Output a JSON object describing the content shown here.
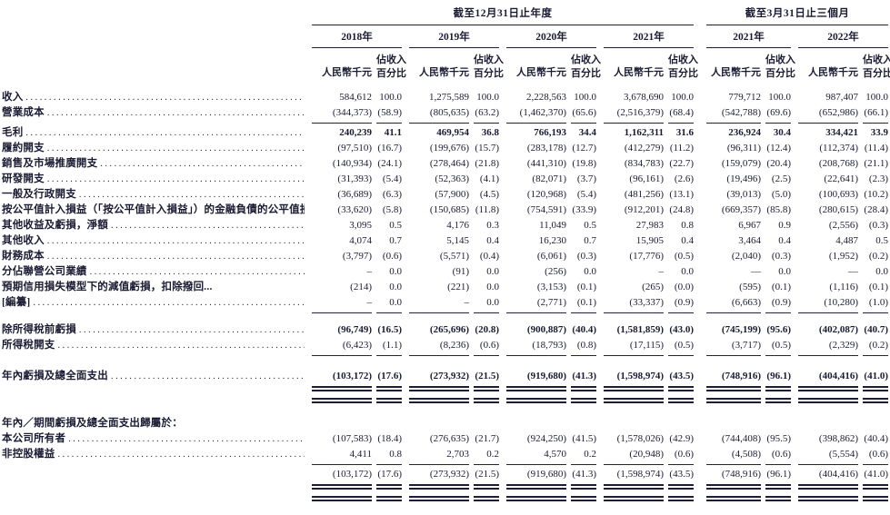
{
  "header": {
    "group1": "截至12月31日止年度",
    "group2": "截至3月31日止三個月",
    "years": [
      "2018年",
      "2019年",
      "2020年",
      "2021年",
      "2021年",
      "2022年"
    ],
    "amount_unit": "人民幣千元",
    "pct_line1": "佔收入",
    "pct_line2": "百分比"
  },
  "rows": [
    {
      "label": "收入",
      "values": [
        "584,612",
        "100.0",
        "1,275,589",
        "100.0",
        "2,228,563",
        "100.0",
        "3,678,690",
        "100.0",
        "779,712",
        "100.0",
        "987,407",
        "100.0"
      ]
    },
    {
      "label": "營業成本",
      "values": [
        "(344,373)",
        "(58.9)",
        "(805,635)",
        "(63.2)",
        "(1,462,370)",
        "(65.6)",
        "(2,516,379)",
        "(68.4)",
        "(542,788)",
        "(69.6)",
        "(652,986)",
        "(66.1)"
      ]
    },
    {
      "label": "毛利",
      "values": [
        "240,239",
        "41.1",
        "469,954",
        "36.8",
        "766,193",
        "34.4",
        "1,162,311",
        "31.6",
        "236,924",
        "30.4",
        "334,421",
        "33.9"
      ]
    },
    {
      "label": "履約開支",
      "values": [
        "(97,510)",
        "(16.7)",
        "(199,676)",
        "(15.7)",
        "(283,178)",
        "(12.7)",
        "(412,279)",
        "(11.2)",
        "(96,311)",
        "(12.4)",
        "(112,374)",
        "(11.4)"
      ]
    },
    {
      "label": "銷售及市場推廣開支",
      "values": [
        "(140,934)",
        "(24.1)",
        "(278,464)",
        "(21.8)",
        "(441,310)",
        "(19.8)",
        "(834,783)",
        "(22.7)",
        "(159,079)",
        "(20.4)",
        "(208,768)",
        "(21.1)"
      ]
    },
    {
      "label": "研發開支",
      "values": [
        "(31,393)",
        "(5.4)",
        "(52,363)",
        "(4.1)",
        "(82,071)",
        "(3.7)",
        "(96,161)",
        "(2.6)",
        "(19,496)",
        "(2.5)",
        "(22,641)",
        "(2.3)"
      ]
    },
    {
      "label": "一般及行政開支",
      "values": [
        "(36,689)",
        "(6.3)",
        "(57,900)",
        "(4.5)",
        "(120,968)",
        "(5.4)",
        "(481,256)",
        "(13.1)",
        "(39,013)",
        "(5.0)",
        "(100,693)",
        "(10.2)"
      ]
    },
    {
      "label": "按公平值計入損益（「按公平值計入損益」）的金融負債的公平值損失",
      "values": [
        "(33,620)",
        "(5.8)",
        "(150,685)",
        "(11.8)",
        "(754,591)",
        "(33.9)",
        "(912,201)",
        "(24.8)",
        "(669,357)",
        "(85.8)",
        "(280,615)",
        "(28.4)"
      ]
    },
    {
      "label": "其他收益及虧損，淨額",
      "values": [
        "3,095",
        "0.5",
        "4,176",
        "0.3",
        "11,049",
        "0.5",
        "27,983",
        "0.8",
        "6,967",
        "0.9",
        "(2,556)",
        "(0.3)"
      ]
    },
    {
      "label": "其他收入",
      "values": [
        "4,074",
        "0.7",
        "5,145",
        "0.4",
        "16,230",
        "0.7",
        "15,905",
        "0.4",
        "3,464",
        "0.4",
        "4,487",
        "0.5"
      ]
    },
    {
      "label": "財務成本",
      "values": [
        "(3,797)",
        "(0.6)",
        "(5,571)",
        "(0.4)",
        "(6,061)",
        "(0.3)",
        "(17,776)",
        "(0.5)",
        "(2,040)",
        "(0.3)",
        "(1,952)",
        "(0.2)"
      ]
    },
    {
      "label": "分佔聯營公司業績",
      "values": [
        "–",
        "0.0",
        "(91)",
        "0.0",
        "(256)",
        "0.0",
        "–",
        "0.0",
        "—",
        "0.0",
        "—",
        "0.0"
      ]
    },
    {
      "label": "預期信用損失模型下的減值虧損，扣除撥回...",
      "values": [
        "(214)",
        "0.0",
        "(221)",
        "0.0",
        "(3,153)",
        "(0.1)",
        "(265)",
        "(0.0)",
        "(595)",
        "(0.1)",
        "(1,116)",
        "(0.1)"
      ]
    },
    {
      "label": "[編纂]",
      "values": [
        "–",
        "0.0",
        "–",
        "0.0",
        "(2,771)",
        "(0.1)",
        "(33,337)",
        "(0.9)",
        "(6,663)",
        "(0.9)",
        "(10,280)",
        "(1.0)"
      ]
    },
    {
      "label": "除所得稅前虧損",
      "values": [
        "(96,749)",
        "(16.5)",
        "(265,696)",
        "(20.8)",
        "(900,887)",
        "(40.4)",
        "(1,581,859)",
        "(43.0)",
        "(745,199)",
        "(95.6)",
        "(402,087)",
        "(40.7)"
      ]
    },
    {
      "label": "所得稅開支",
      "values": [
        "(6,423)",
        "(1.1)",
        "(8,236)",
        "(0.6)",
        "(18,793)",
        "(0.8)",
        "(17,115)",
        "(0.5)",
        "(3,717)",
        "(0.5)",
        "(2,329)",
        "(0.2)"
      ]
    },
    {
      "label": "年內虧損及總全面支出",
      "values": [
        "(103,172)",
        "(17.6)",
        "(273,932)",
        "(21.5)",
        "(919,680)",
        "(41.3)",
        "(1,598,974)",
        "(43.5)",
        "(748,916)",
        "(96.1)",
        "(404,416)",
        "(41.0)"
      ]
    },
    {
      "label": "年內／期間虧損及總全面支出歸屬於：",
      "values": []
    },
    {
      "label": "本公司所有者",
      "values": [
        "(107,583)",
        "(18.4)",
        "(276,635)",
        "(21.7)",
        "(924,250)",
        "(41.5)",
        "(1,578,026)",
        "(42.9)",
        "(744,408)",
        "(95.5)",
        "(398,862)",
        "(40.4)"
      ]
    },
    {
      "label": "非控股權益",
      "values": [
        "4,411",
        "0.8",
        "2,703",
        "0.2",
        "4,570",
        "0.2",
        "(20,948)",
        "(0.6)",
        "(4,508)",
        "(0.6)",
        "(5,554)",
        "(0.6)"
      ]
    },
    {
      "label": "",
      "values": [
        "(103,172)",
        "(17.6)",
        "(273,932)",
        "(21.5)",
        "(919,680)",
        "(41.3)",
        "(1,598,974)",
        "(43.5)",
        "(748,916)",
        "(96.1)",
        "(404,416)",
        "(41.0)"
      ]
    }
  ]
}
